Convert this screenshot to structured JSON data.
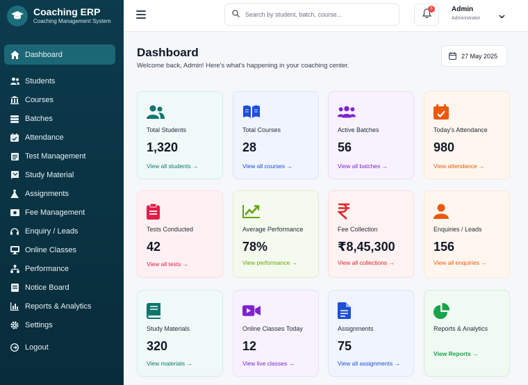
{
  "brand": {
    "name": "Coaching ERP",
    "subtitle": "Coaching Management System"
  },
  "sidebar": {
    "items": [
      {
        "label": "Dashboard",
        "icon": "home-icon"
      },
      {
        "label": "Students",
        "icon": "users-icon"
      },
      {
        "label": "Courses",
        "icon": "building-icon"
      },
      {
        "label": "Batches",
        "icon": "layers-icon"
      },
      {
        "label": "Attendance",
        "icon": "calendar-check-icon"
      },
      {
        "label": "Test Management",
        "icon": "clipboard-icon"
      },
      {
        "label": "Study Material",
        "icon": "book-icon"
      },
      {
        "label": "Assignments",
        "icon": "flask-icon"
      },
      {
        "label": "Fee Management",
        "icon": "money-icon"
      },
      {
        "label": "Enquiry / Leads",
        "icon": "headset-icon"
      },
      {
        "label": "Online Classes",
        "icon": "monitor-icon"
      },
      {
        "label": "Performance",
        "icon": "sitemap-icon"
      },
      {
        "label": "Notice Board",
        "icon": "notice-icon"
      },
      {
        "label": "Reports & Analytics",
        "icon": "bar-chart-icon"
      },
      {
        "label": "Settings",
        "icon": "gear-icon"
      },
      {
        "label": "Logout",
        "icon": "logout-icon"
      }
    ]
  },
  "topbar": {
    "search_placeholder": "Search by student, batch, course...",
    "notification_count": "5",
    "user_name": "Admin",
    "user_role": "Administrator"
  },
  "header": {
    "title": "Dashboard",
    "subtitle": "Welcome back, Admin! Here's what's happening in your coaching center.",
    "date": "27 May 2025"
  },
  "cards": [
    {
      "label": "Total Students",
      "value": "1,320",
      "link": "View all students →",
      "color": "#0f766e",
      "icon": "students-icon"
    },
    {
      "label": "Total Courses",
      "value": "28",
      "link": "View all courses →",
      "color": "#1d4ed8",
      "icon": "open-book-icon"
    },
    {
      "label": "Active Batches",
      "value": "56",
      "link": "View all batches →",
      "color": "#7e22ce",
      "icon": "group-icon"
    },
    {
      "label": "Today's Attendance",
      "value": "980",
      "link": "View attendance →",
      "color": "#ea580c",
      "icon": "calendar-check-icon"
    },
    {
      "label": "Tests Conducted",
      "value": "42",
      "link": "View all tests →",
      "color": "#e11d48",
      "icon": "clipboard-icon"
    },
    {
      "label": "Average Performance",
      "value": "78%",
      "link": "View performance →",
      "color": "#65a30d",
      "icon": "trend-up-icon"
    },
    {
      "label": "Fee Collection",
      "value": "₹8,45,300",
      "link": "View all collections →",
      "color": "#dc2626",
      "icon": "rupee-icon"
    },
    {
      "label": "Enquiries / Leads",
      "value": "156",
      "link": "View all enquiries →",
      "color": "#ea580c",
      "icon": "person-icon"
    },
    {
      "label": "Study Materials",
      "value": "320",
      "link": "View materials →",
      "color": "#0f766e",
      "icon": "book-icon"
    },
    {
      "label": "Online Classes Today",
      "value": "12",
      "link": "View live classes →",
      "color": "#7e22ce",
      "icon": "video-icon"
    },
    {
      "label": "Assignments",
      "value": "75",
      "link": "View all assignments →",
      "color": "#1d4ed8",
      "icon": "document-icon"
    },
    {
      "label": "Reports & Analytics",
      "value": "",
      "link": "View Reports →",
      "color": "#16a34a",
      "icon": "pie-chart-icon"
    }
  ]
}
